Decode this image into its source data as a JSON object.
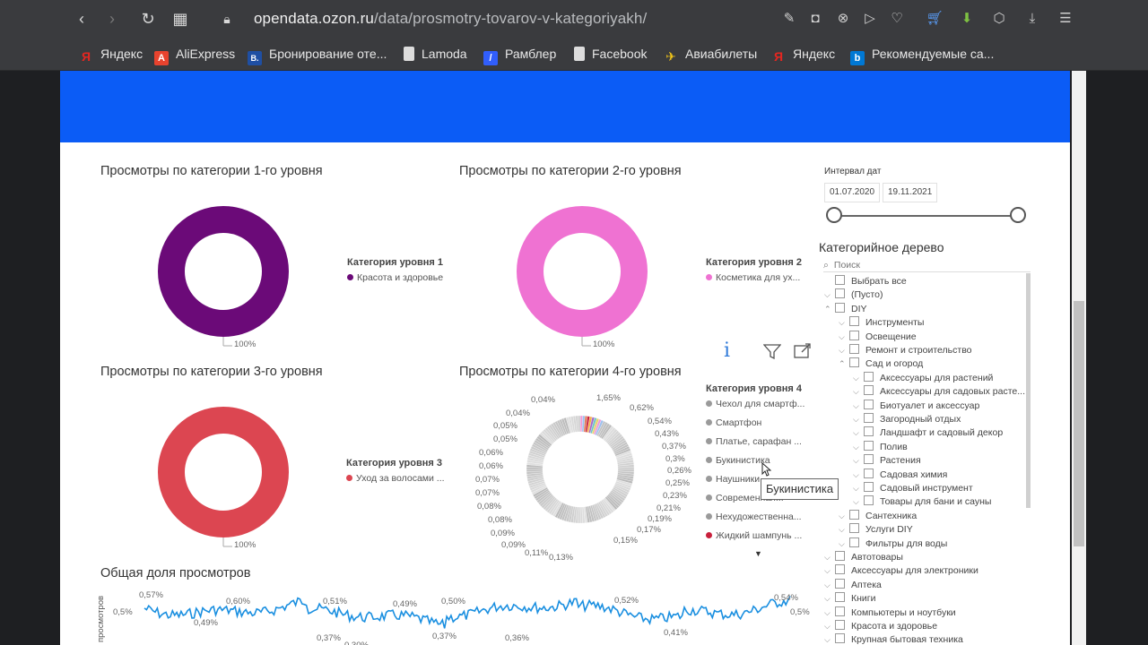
{
  "browser": {
    "url_domain": "opendata.ozon.ru",
    "url_path": "/data/prosmotry-tovarov-v-kategoriyakh/",
    "bookmarks": [
      {
        "label": "Яндекс",
        "color": "#e52620",
        "glyph": "Я"
      },
      {
        "label": "AliExpress",
        "color": "#e8432e",
        "glyph": "A"
      },
      {
        "label": "Бронирование оте...",
        "color": "#1f4fa3",
        "glyph": "B."
      },
      {
        "label": "Lamoda",
        "color": "#ffffff",
        "glyph": ""
      },
      {
        "label": "Рамблер",
        "color": "#315efb",
        "glyph": "/"
      },
      {
        "label": "Facebook",
        "color": "#ffffff",
        "glyph": ""
      },
      {
        "label": "Авиабилеты",
        "color": "#f0c419",
        "glyph": "✈"
      },
      {
        "label": "Яндекс",
        "color": "#e52620",
        "glyph": "Я"
      },
      {
        "label": "Рекомендуемые са...",
        "color": "#0078d4",
        "glyph": "b"
      }
    ]
  },
  "charts": {
    "c1": {
      "title": "Просмотры по категории 1-го уровня",
      "legend_title": "Категория уровня 1",
      "item": "Красота и здоровье",
      "color": "#6b0a78",
      "pct": "100%"
    },
    "c2": {
      "title": "Просмотры по категории 2-го уровня",
      "legend_title": "Категория уровня 2",
      "item": "Косметика для ух...",
      "color": "#ef72d2",
      "pct": "100%"
    },
    "c3": {
      "title": "Просмотры по категории 3-го уровня",
      "legend_title": "Категория уровня 3",
      "item": "Уход за волосами ...",
      "color": "#dc4651",
      "pct": "100%"
    },
    "c4": {
      "title": "Просмотры по категории 4-го уровня",
      "legend_title": "Категория уровня 4",
      "items": [
        {
          "label": "Чехол для смартф...",
          "color": "#9a9a9a"
        },
        {
          "label": "Смартфон",
          "color": "#9a9a9a"
        },
        {
          "label": "Платье, сарафан ...",
          "color": "#9a9a9a"
        },
        {
          "label": "Букинистика",
          "color": "#9a9a9a"
        },
        {
          "label": "Наушники",
          "color": "#9a9a9a"
        },
        {
          "label": "Современная...",
          "color": "#9a9a9a"
        },
        {
          "label": "Нехудожественна...",
          "color": "#9a9a9a"
        },
        {
          "label": "Жидкий шампунь ...",
          "color": "#c8203c"
        }
      ],
      "labels_left": [
        "0,04%",
        "0,04%",
        "0,05%",
        "0,05%",
        "0,06%",
        "0,06%",
        "0,07%",
        "0,07%",
        "0,08%",
        "0,08%",
        "0,09%",
        "0,09%",
        "0,11%",
        "0,13%"
      ],
      "labels_right": [
        "1,65%",
        "0,62%",
        "0,54%",
        "0,43%",
        "0,37%",
        "0,3%",
        "0,26%",
        "0,25%",
        "0,23%",
        "0,21%",
        "0,19%",
        "0,17%",
        "0,15%"
      ]
    }
  },
  "tooltip": "Букинистика",
  "line_chart": {
    "title": "Общая доля просмотров",
    "ylabel": "просмотров",
    "ytick": "0,5%",
    "ytick_right": "0,5%",
    "point_labels": [
      "0,57%",
      "0,49%",
      "0,60%",
      "0,51%",
      "0,37%",
      "0,30%",
      "0,49%",
      "0,37%",
      "0,50%",
      "0,36%",
      "0,52%",
      "0,41%",
      "0,54%"
    ]
  },
  "date_filter": {
    "label": "Интервал дат",
    "start": "01.07.2020",
    "end": "19.11.2021"
  },
  "tree": {
    "title": "Категорийное дерево",
    "search_placeholder": "Поиск",
    "rows": [
      {
        "label": "Выбрать все",
        "level": 0,
        "chev": ""
      },
      {
        "label": "(Пусто)",
        "level": 0,
        "chev": "⌵"
      },
      {
        "label": "DIY",
        "level": 0,
        "chev": "⌃"
      },
      {
        "label": "Инструменты",
        "level": 1,
        "chev": "⌵"
      },
      {
        "label": "Освещение",
        "level": 1,
        "chev": "⌵"
      },
      {
        "label": "Ремонт и строительство",
        "level": 1,
        "chev": "⌵"
      },
      {
        "label": "Сад и огород",
        "level": 1,
        "chev": "⌃"
      },
      {
        "label": "Аксессуары для растений",
        "level": 2,
        "chev": "⌵"
      },
      {
        "label": "Аксессуары для садовых расте...",
        "level": 2,
        "chev": "⌵"
      },
      {
        "label": "Биотуалет и аксессуар",
        "level": 2,
        "chev": "⌵"
      },
      {
        "label": "Загородный отдых",
        "level": 2,
        "chev": "⌵"
      },
      {
        "label": "Ландшафт и садовый декор",
        "level": 2,
        "chev": "⌵"
      },
      {
        "label": "Полив",
        "level": 2,
        "chev": "⌵"
      },
      {
        "label": "Растения",
        "level": 2,
        "chev": "⌵"
      },
      {
        "label": "Садовая химия",
        "level": 2,
        "chev": "⌵"
      },
      {
        "label": "Садовый инструмент",
        "level": 2,
        "chev": "⌵"
      },
      {
        "label": "Товары для бани и сауны",
        "level": 2,
        "chev": "⌵"
      },
      {
        "label": "Сантехника",
        "level": 1,
        "chev": "⌵"
      },
      {
        "label": "Услуги DIY",
        "level": 1,
        "chev": "⌵"
      },
      {
        "label": "Фильтры для воды",
        "level": 1,
        "chev": "⌵"
      },
      {
        "label": "Автотовары",
        "level": 0,
        "chev": "⌵"
      },
      {
        "label": "Аксессуары для электроники",
        "level": 0,
        "chev": "⌵"
      },
      {
        "label": "Аптека",
        "level": 0,
        "chev": "⌵"
      },
      {
        "label": "Книги",
        "level": 0,
        "chev": "⌵"
      },
      {
        "label": "Компьютеры и ноутбуки",
        "level": 0,
        "chev": "⌵"
      },
      {
        "label": "Красота и здоровье",
        "level": 0,
        "chev": "⌵"
      },
      {
        "label": "Крупная бытовая техника",
        "level": 0,
        "chev": "⌵"
      }
    ]
  }
}
